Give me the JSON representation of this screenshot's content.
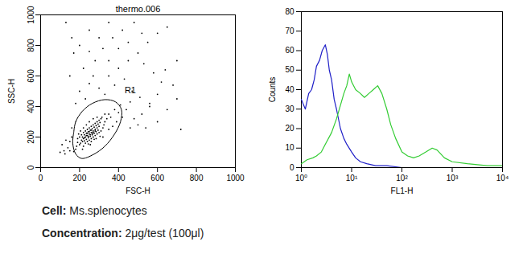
{
  "chart_data": [
    {
      "type": "scatter",
      "title": "thermo.006",
      "x_label": "FSC-H",
      "y_label": "SSC-H",
      "color": "#000000",
      "xlim": [
        0,
        1000
      ],
      "xticks": [
        0,
        200,
        400,
        600,
        800,
        1000
      ],
      "ylim": [
        0,
        1000
      ],
      "yticks": [
        0,
        200,
        400,
        600,
        800,
        1000
      ],
      "gate": {
        "label": "R1",
        "points": [
          [
            170,
            230
          ],
          [
            180,
            300
          ],
          [
            215,
            370
          ],
          [
            265,
            420
          ],
          [
            330,
            445
          ],
          [
            385,
            430
          ],
          [
            415,
            380
          ],
          [
            410,
            300
          ],
          [
            380,
            220
          ],
          [
            330,
            140
          ],
          [
            270,
            85
          ],
          [
            210,
            60
          ],
          [
            180,
            90
          ],
          [
            165,
            160
          ]
        ]
      },
      "points": [
        [
          210,
          180
        ],
        [
          220,
          190
        ],
        [
          230,
          200
        ],
        [
          240,
          210
        ],
        [
          250,
          220
        ],
        [
          260,
          230
        ],
        [
          270,
          240
        ],
        [
          280,
          250
        ],
        [
          290,
          260
        ],
        [
          300,
          270
        ],
        [
          215,
          200
        ],
        [
          225,
          215
        ],
        [
          235,
          225
        ],
        [
          245,
          235
        ],
        [
          255,
          245
        ],
        [
          265,
          255
        ],
        [
          275,
          265
        ],
        [
          285,
          275
        ],
        [
          295,
          285
        ],
        [
          305,
          295
        ],
        [
          205,
          160
        ],
        [
          215,
          170
        ],
        [
          225,
          175
        ],
        [
          235,
          185
        ],
        [
          245,
          195
        ],
        [
          255,
          205
        ],
        [
          265,
          215
        ],
        [
          275,
          225
        ],
        [
          285,
          235
        ],
        [
          295,
          245
        ],
        [
          220,
          230
        ],
        [
          230,
          240
        ],
        [
          240,
          250
        ],
        [
          250,
          260
        ],
        [
          260,
          270
        ],
        [
          270,
          280
        ],
        [
          280,
          290
        ],
        [
          290,
          300
        ],
        [
          300,
          310
        ],
        [
          310,
          320
        ],
        [
          200,
          200
        ],
        [
          210,
          215
        ],
        [
          240,
          170
        ],
        [
          250,
          180
        ],
        [
          260,
          190
        ],
        [
          270,
          200
        ],
        [
          280,
          210
        ],
        [
          290,
          220
        ],
        [
          300,
          230
        ],
        [
          310,
          240
        ],
        [
          230,
          160
        ],
        [
          245,
          155
        ],
        [
          260,
          170
        ],
        [
          275,
          185
        ],
        [
          320,
          260
        ],
        [
          325,
          280
        ],
        [
          330,
          300
        ],
        [
          315,
          330
        ],
        [
          290,
          330
        ],
        [
          270,
          320
        ],
        [
          250,
          300
        ],
        [
          235,
          280
        ],
        [
          220,
          260
        ],
        [
          205,
          240
        ],
        [
          195,
          220
        ],
        [
          190,
          190
        ],
        [
          200,
          150
        ],
        [
          220,
          140
        ],
        [
          255,
          150
        ],
        [
          285,
          190
        ],
        [
          240,
          225
        ],
        [
          250,
          235
        ],
        [
          260,
          245
        ],
        [
          265,
          225
        ],
        [
          255,
          215
        ],
        [
          245,
          205
        ],
        [
          270,
          230
        ],
        [
          280,
          240
        ],
        [
          235,
          210
        ],
        [
          225,
          195
        ],
        [
          340,
          320
        ],
        [
          350,
          350
        ],
        [
          330,
          350
        ],
        [
          360,
          330
        ],
        [
          320,
          200
        ],
        [
          305,
          205
        ],
        [
          190,
          165
        ],
        [
          185,
          140
        ],
        [
          215,
          120
        ],
        [
          180,
          120
        ],
        [
          380,
          380
        ],
        [
          400,
          360
        ],
        [
          370,
          270
        ],
        [
          350,
          250
        ],
        [
          160,
          200
        ],
        [
          150,
          170
        ],
        [
          140,
          130
        ],
        [
          120,
          110
        ],
        [
          110,
          150
        ],
        [
          130,
          180
        ],
        [
          100,
          100
        ],
        [
          125,
          90
        ],
        [
          150,
          110
        ],
        [
          170,
          105
        ],
        [
          160,
          260
        ],
        [
          410,
          410
        ],
        [
          420,
          330
        ],
        [
          390,
          300
        ],
        [
          440,
          380
        ],
        [
          460,
          430
        ],
        [
          200,
          500
        ],
        [
          250,
          550
        ],
        [
          300,
          520
        ],
        [
          350,
          600
        ],
        [
          400,
          650
        ],
        [
          450,
          700
        ],
        [
          500,
          750
        ],
        [
          550,
          820
        ],
        [
          600,
          880
        ],
        [
          650,
          920
        ],
        [
          220,
          650
        ],
        [
          280,
          700
        ],
        [
          320,
          780
        ],
        [
          370,
          850
        ],
        [
          420,
          900
        ],
        [
          480,
          950
        ],
        [
          530,
          680
        ],
        [
          580,
          620
        ],
        [
          620,
          560
        ],
        [
          680,
          540
        ],
        [
          180,
          420
        ],
        [
          230,
          450
        ],
        [
          270,
          600
        ],
        [
          330,
          480
        ],
        [
          380,
          540
        ],
        [
          430,
          580
        ],
        [
          470,
          500
        ],
        [
          510,
          460
        ],
        [
          560,
          420
        ],
        [
          600,
          480
        ],
        [
          250,
          900
        ],
        [
          300,
          850
        ],
        [
          350,
          950
        ],
        [
          150,
          600
        ],
        [
          170,
          750
        ],
        [
          400,
          780
        ],
        [
          450,
          820
        ],
        [
          520,
          880
        ],
        [
          700,
          700
        ],
        [
          640,
          640
        ],
        [
          480,
          320
        ],
        [
          520,
          350
        ],
        [
          560,
          400
        ],
        [
          600,
          300
        ],
        [
          650,
          380
        ],
        [
          700,
          450
        ],
        [
          720,
          250
        ],
        [
          500,
          280
        ],
        [
          540,
          260
        ],
        [
          460,
          260
        ],
        [
          130,
          950
        ],
        [
          160,
          850
        ],
        [
          200,
          800
        ],
        [
          250,
          760
        ],
        [
          350,
          700
        ]
      ]
    },
    {
      "type": "line",
      "x_label": "FL1-H",
      "y_label": "Counts",
      "log": "x",
      "xlim": [
        1,
        10000
      ],
      "xticks": [
        {
          "value": 1,
          "label": "10⁰"
        },
        {
          "value": 10,
          "label": "10¹"
        },
        {
          "value": 100,
          "label": "10²"
        },
        {
          "value": 1000,
          "label": "10³"
        },
        {
          "value": 10000,
          "label": "10⁴"
        }
      ],
      "ylim": [
        0,
        80
      ],
      "yticks": [
        0,
        10,
        20,
        30,
        40,
        50,
        60,
        70,
        80
      ],
      "series": [
        {
          "color": "#2020c8",
          "x": [
            1,
            1.2,
            1.4,
            1.6,
            1.8,
            2,
            2.3,
            2.6,
            3,
            3.3,
            3.6,
            4,
            4.5,
            5,
            6,
            7,
            8,
            10,
            12,
            15,
            20,
            30,
            50,
            100,
            200,
            1000,
            10000
          ],
          "values": [
            35,
            30,
            38,
            40,
            45,
            52,
            55,
            60,
            63,
            58,
            50,
            45,
            35,
            30,
            20,
            15,
            12,
            8,
            5,
            3,
            2,
            1,
            1,
            0,
            0,
            0,
            0
          ]
        },
        {
          "color": "#33cc33",
          "x": [
            1,
            1.3,
            1.7,
            2,
            2.5,
            3,
            4,
            5,
            6,
            7,
            8,
            9,
            10,
            12,
            15,
            18,
            22,
            27,
            33,
            40,
            50,
            60,
            75,
            100,
            130,
            170,
            220,
            300,
            400,
            500,
            700,
            1000,
            2000,
            5000,
            10000
          ],
          "values": [
            2,
            4,
            5,
            6,
            8,
            12,
            18,
            25,
            32,
            38,
            42,
            48,
            44,
            40,
            38,
            36,
            38,
            40,
            42,
            38,
            30,
            22,
            15,
            8,
            6,
            5,
            6,
            8,
            10,
            9,
            5,
            3,
            2,
            1,
            1
          ]
        }
      ]
    }
  ],
  "captions": [
    {
      "label": "Cell:",
      "value": "Ms.splenocytes"
    },
    {
      "label": "Concentration:",
      "value": "2μg/test (100μl)"
    }
  ]
}
